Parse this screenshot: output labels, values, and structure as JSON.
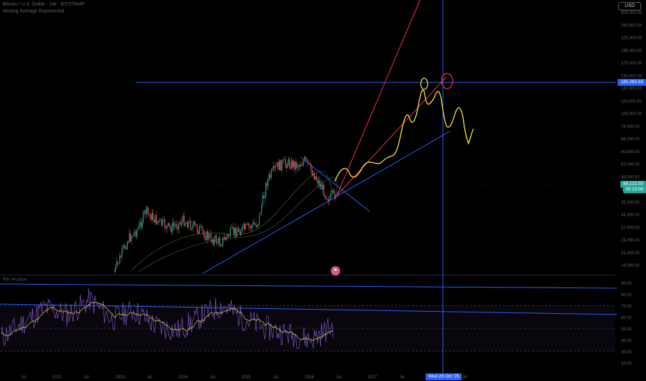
{
  "header": {
    "symbol_line": "Bitcoin / U.S. Dollar · 1W · BITSTAMP",
    "indicator_line": "Moving Average Exponential"
  },
  "toolbar": {
    "currency_label": "USD"
  },
  "price_axis": {
    "ticks": [
      "300,000.00",
      "260,000.00",
      "225,000.00",
      "195,000.00",
      "170,000.00",
      "150,000.00",
      "130,000.00",
      "115,000.00",
      "100,000.00",
      "78,000.00",
      "68,000.00",
      "60,000.00",
      "53,000.00",
      "46,000.00",
      "40,000.00",
      "35,000.00",
      "31,000.00",
      "27,000.00",
      "24,000.00",
      "21,000.00",
      "18,000.00"
    ],
    "hline_price": "180,392.63",
    "last_price": "88,122.50",
    "countdown": "05:15:08"
  },
  "rsi_panel": {
    "title": "RSI 14 close",
    "ticks": [
      "90.00",
      "80.00",
      "70.00",
      "60.00",
      "50.00",
      "40.00",
      "30.00",
      "20.00"
    ]
  },
  "time_axis": {
    "ticks": [
      "Jul",
      "2022",
      "Jul",
      "2023",
      "Jul",
      "2024",
      "Jul",
      "2025",
      "Jul",
      "2026",
      "Jul",
      "2027",
      "Jul",
      "2028",
      "Jul"
    ],
    "cursor_date": "Wed 29 Oct '25"
  },
  "events_icon": "tv-flag-icon",
  "colors": {
    "background": "#000000",
    "up_candle": "#26a69a",
    "down_candle": "#ef5350",
    "trendline": "#2962ff",
    "projection_path": "#ffeb3b",
    "target_channel": "#f23645",
    "rsi_line": "#7e57c2",
    "rsi_ma": "#c8c060"
  },
  "chart_data": [
    {
      "type": "candlestick",
      "title": "Bitcoin / U.S. Dollar · 1W · BITSTAMP",
      "x": [
        "2024-03",
        "2024-06",
        "2024-09",
        "2024-12",
        "2025-03",
        "2025-06",
        "2025-09",
        "2025-12"
      ],
      "close": [
        68000,
        64000,
        60000,
        95000,
        85000,
        105000,
        112000,
        88122.5
      ],
      "last_close": 88122.5,
      "drawings": {
        "horizontal_line_price": 180392.63,
        "cursor_date": "Wed 29 Oct '25",
        "projection_note": "hand-drawn yellow path rising to ~180,000 then falling back to the rising blue support line"
      },
      "ylim": [
        18000,
        300000
      ],
      "yscale": "log",
      "grid": false,
      "legend": "none"
    },
    {
      "type": "line",
      "title": "RSI 14 close",
      "series": [
        {
          "values": [
            42,
            55,
            68,
            62,
            75,
            58,
            66,
            52,
            48,
            60,
            70,
            58,
            50,
            45,
            40,
            52
          ]
        }
      ],
      "reference_lines": [
        70,
        50,
        30
      ],
      "ylim": [
        20,
        90
      ],
      "grid": false,
      "legend": "none"
    }
  ]
}
